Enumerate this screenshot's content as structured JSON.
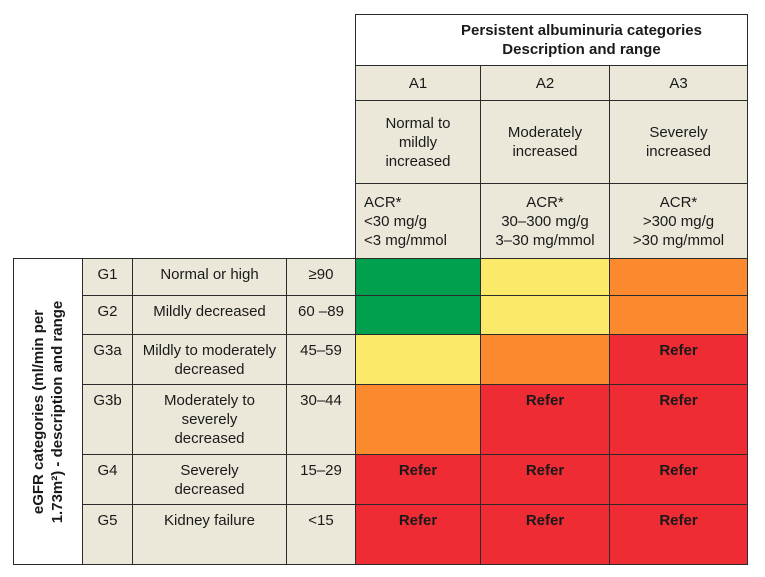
{
  "header": {
    "title": "Persistent albuminuria categories\nDescription and range",
    "cols": [
      {
        "code": "A1",
        "desc": "Normal to\nmildly\nincreased",
        "range": "ACR*\n<30 mg/g\n<3 mg/mmol"
      },
      {
        "code": "A2",
        "desc": "Moderately\nincreased",
        "range": "ACR*\n30–300 mg/g\n3–30 mg/mmol"
      },
      {
        "code": "A3",
        "desc": "Severely\nincreased",
        "range": "ACR*\n>300 mg/g\n>30 mg/mmol"
      }
    ]
  },
  "side_label": "eGFR categories (ml/min per\n1.73m²) - description and range",
  "rows": [
    {
      "grade": "G1",
      "desc": "Normal or high",
      "range": "≥90",
      "cells": [
        "",
        "",
        ""
      ]
    },
    {
      "grade": "G2",
      "desc": "Mildly decreased",
      "range": "60 –89",
      "cells": [
        "",
        "",
        ""
      ]
    },
    {
      "grade": "G3a",
      "desc": "Mildly to moderately\ndecreased",
      "range": "45–59",
      "cells": [
        "",
        "",
        "Refer"
      ]
    },
    {
      "grade": "G3b",
      "desc": "Moderately to\nseverely\ndecreased",
      "range": "30–44",
      "cells": [
        "",
        "Refer",
        "Refer"
      ]
    },
    {
      "grade": "G4",
      "desc": "Severely\ndecreased",
      "range": "15–29",
      "cells": [
        "Refer",
        "Refer",
        "Refer"
      ]
    },
    {
      "grade": "G5",
      "desc": "Kidney failure",
      "range": "<15",
      "cells": [
        "Refer",
        "Refer",
        "Refer"
      ]
    }
  ],
  "colors": {
    "green": "#00a04e",
    "yellow": "#fbe96a",
    "orange": "#fb8a2e",
    "red": "#ef2b33",
    "beige": "#ebe8d9"
  },
  "risk_map": [
    [
      "green",
      "yellow",
      "orange"
    ],
    [
      "green",
      "yellow",
      "orange"
    ],
    [
      "yellow",
      "orange",
      "red"
    ],
    [
      "orange",
      "red",
      "red"
    ],
    [
      "red",
      "red",
      "red"
    ],
    [
      "red",
      "red",
      "red"
    ]
  ]
}
